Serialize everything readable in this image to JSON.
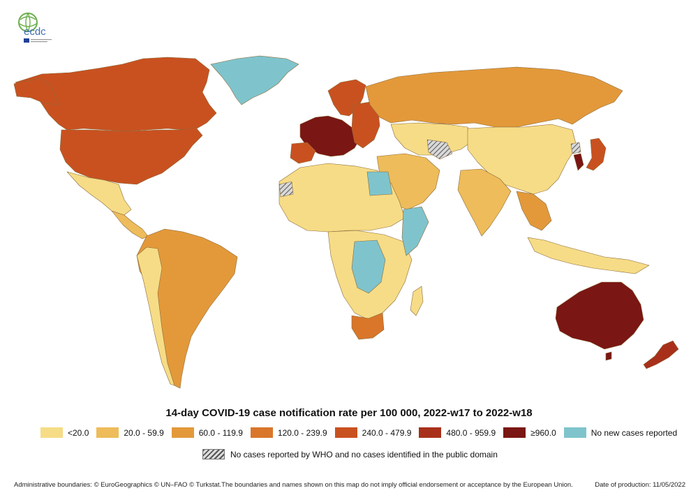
{
  "logo": {
    "text": "ecdc"
  },
  "title": "14-day COVID-19 case notification rate per 100 000, 2022-w17 to 2022-w18",
  "legend": [
    {
      "label": "<20.0",
      "color": "#f6dc86"
    },
    {
      "label": "20.0 - 59.9",
      "color": "#eebc5a"
    },
    {
      "label": "60.0 - 119.9",
      "color": "#e3993a"
    },
    {
      "label": "120.0 - 239.9",
      "color": "#d9762a"
    },
    {
      "label": "240.0 - 479.9",
      "color": "#c95120"
    },
    {
      "label": "480.0 - 959.9",
      "color": "#a8301a"
    },
    {
      "label": "≥960.0",
      "color": "#7a1613"
    },
    {
      "label": "No new cases reported",
      "color": "#7fc4cc"
    }
  ],
  "no_data_label": "No cases reported by WHO and no cases identified in the public domain",
  "footer": {
    "credits": "Administrative boundaries: © EuroGeographics © UN–FAO © Turkstat.The boundaries and names shown on this map do not imply official endorsement or acceptance by the European Union.",
    "date": "Date of production: 11/05/2022"
  },
  "colors": {
    "lt20": "#f6dc86",
    "c20_60": "#eebc5a",
    "c60_120": "#e3993a",
    "c120_240": "#d9762a",
    "c240_480": "#c95120",
    "c480_960": "#a8301a",
    "ge960": "#7a1613",
    "none": "#7fc4cc",
    "border": "#8a6a3a"
  }
}
